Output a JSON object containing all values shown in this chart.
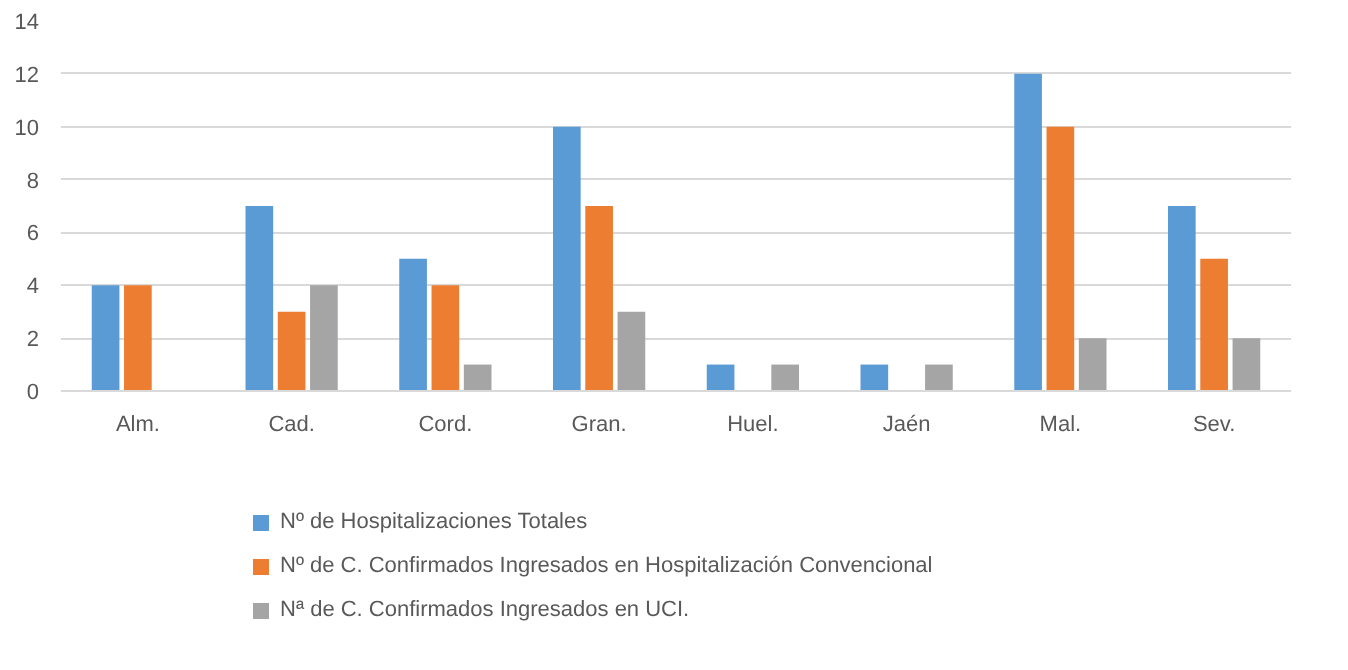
{
  "chart_data": {
    "type": "bar",
    "categories": [
      "Alm.",
      "Cad.",
      "Cord.",
      "Gran.",
      "Huel.",
      "Jaén",
      "Mal.",
      "Sev."
    ],
    "series": [
      {
        "name": "Nº de Hospitalizaciones Totales",
        "color": "#5b9bd5",
        "values": [
          4,
          7,
          5,
          10,
          1,
          1,
          12,
          7
        ]
      },
      {
        "name": "Nº de C. Confirmados Ingresados en Hospitalización Convencional",
        "color": "#ed7d31",
        "values": [
          4,
          3,
          4,
          7,
          0,
          0,
          10,
          5
        ]
      },
      {
        "name": "Nª de C. Confirmados Ingresados en UCI.",
        "color": "#a5a5a5",
        "values": [
          0,
          4,
          1,
          3,
          1,
          1,
          2,
          2
        ]
      }
    ],
    "ylim": [
      0,
      14
    ],
    "yticks": [
      0,
      2,
      4,
      6,
      8,
      10,
      12,
      14
    ],
    "grid": "y",
    "legend": "bottom"
  }
}
